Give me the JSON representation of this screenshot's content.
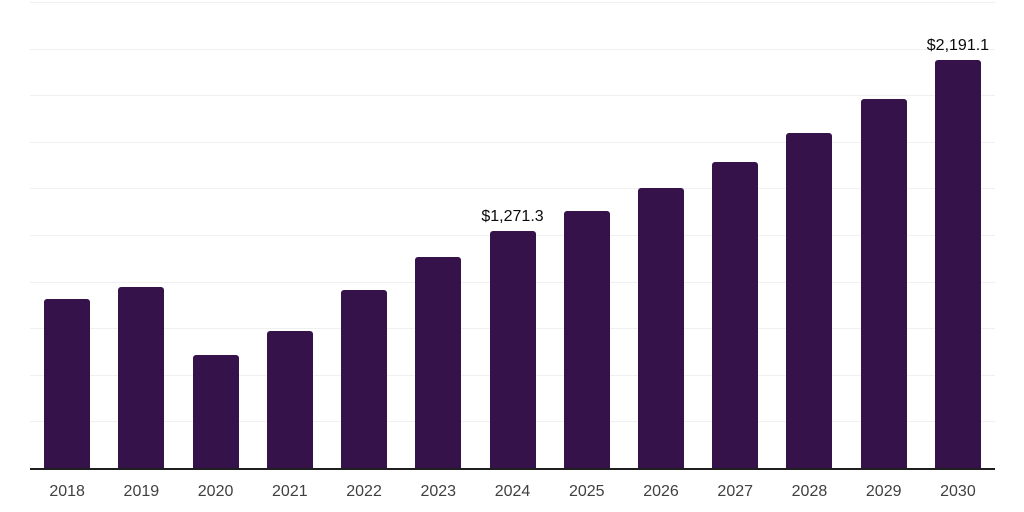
{
  "chart_data": {
    "type": "bar",
    "title": "",
    "xlabel": "",
    "ylabel": "",
    "categories": [
      "2018",
      "2019",
      "2020",
      "2021",
      "2022",
      "2023",
      "2024",
      "2025",
      "2026",
      "2027",
      "2028",
      "2029",
      "2030"
    ],
    "values": [
      905,
      973,
      607,
      735,
      954,
      1131,
      1271.3,
      1378,
      1500,
      1641,
      1798,
      1981,
      2191.1
    ],
    "data_labels": [
      "",
      "",
      "",
      "",
      "",
      "",
      "$1,271.3",
      "",
      "",
      "",
      "",
      "",
      "$2,191.1"
    ],
    "ylim": [
      0,
      2500
    ],
    "gridline_step": 250,
    "grid": true,
    "legend_position": "none",
    "bar_color": "#36124a",
    "axis_color": "#1f1f1f",
    "gridline_color": "#f0f0f0",
    "value_label_color": "#0a0a0a",
    "tick_label_color": "#404040"
  }
}
